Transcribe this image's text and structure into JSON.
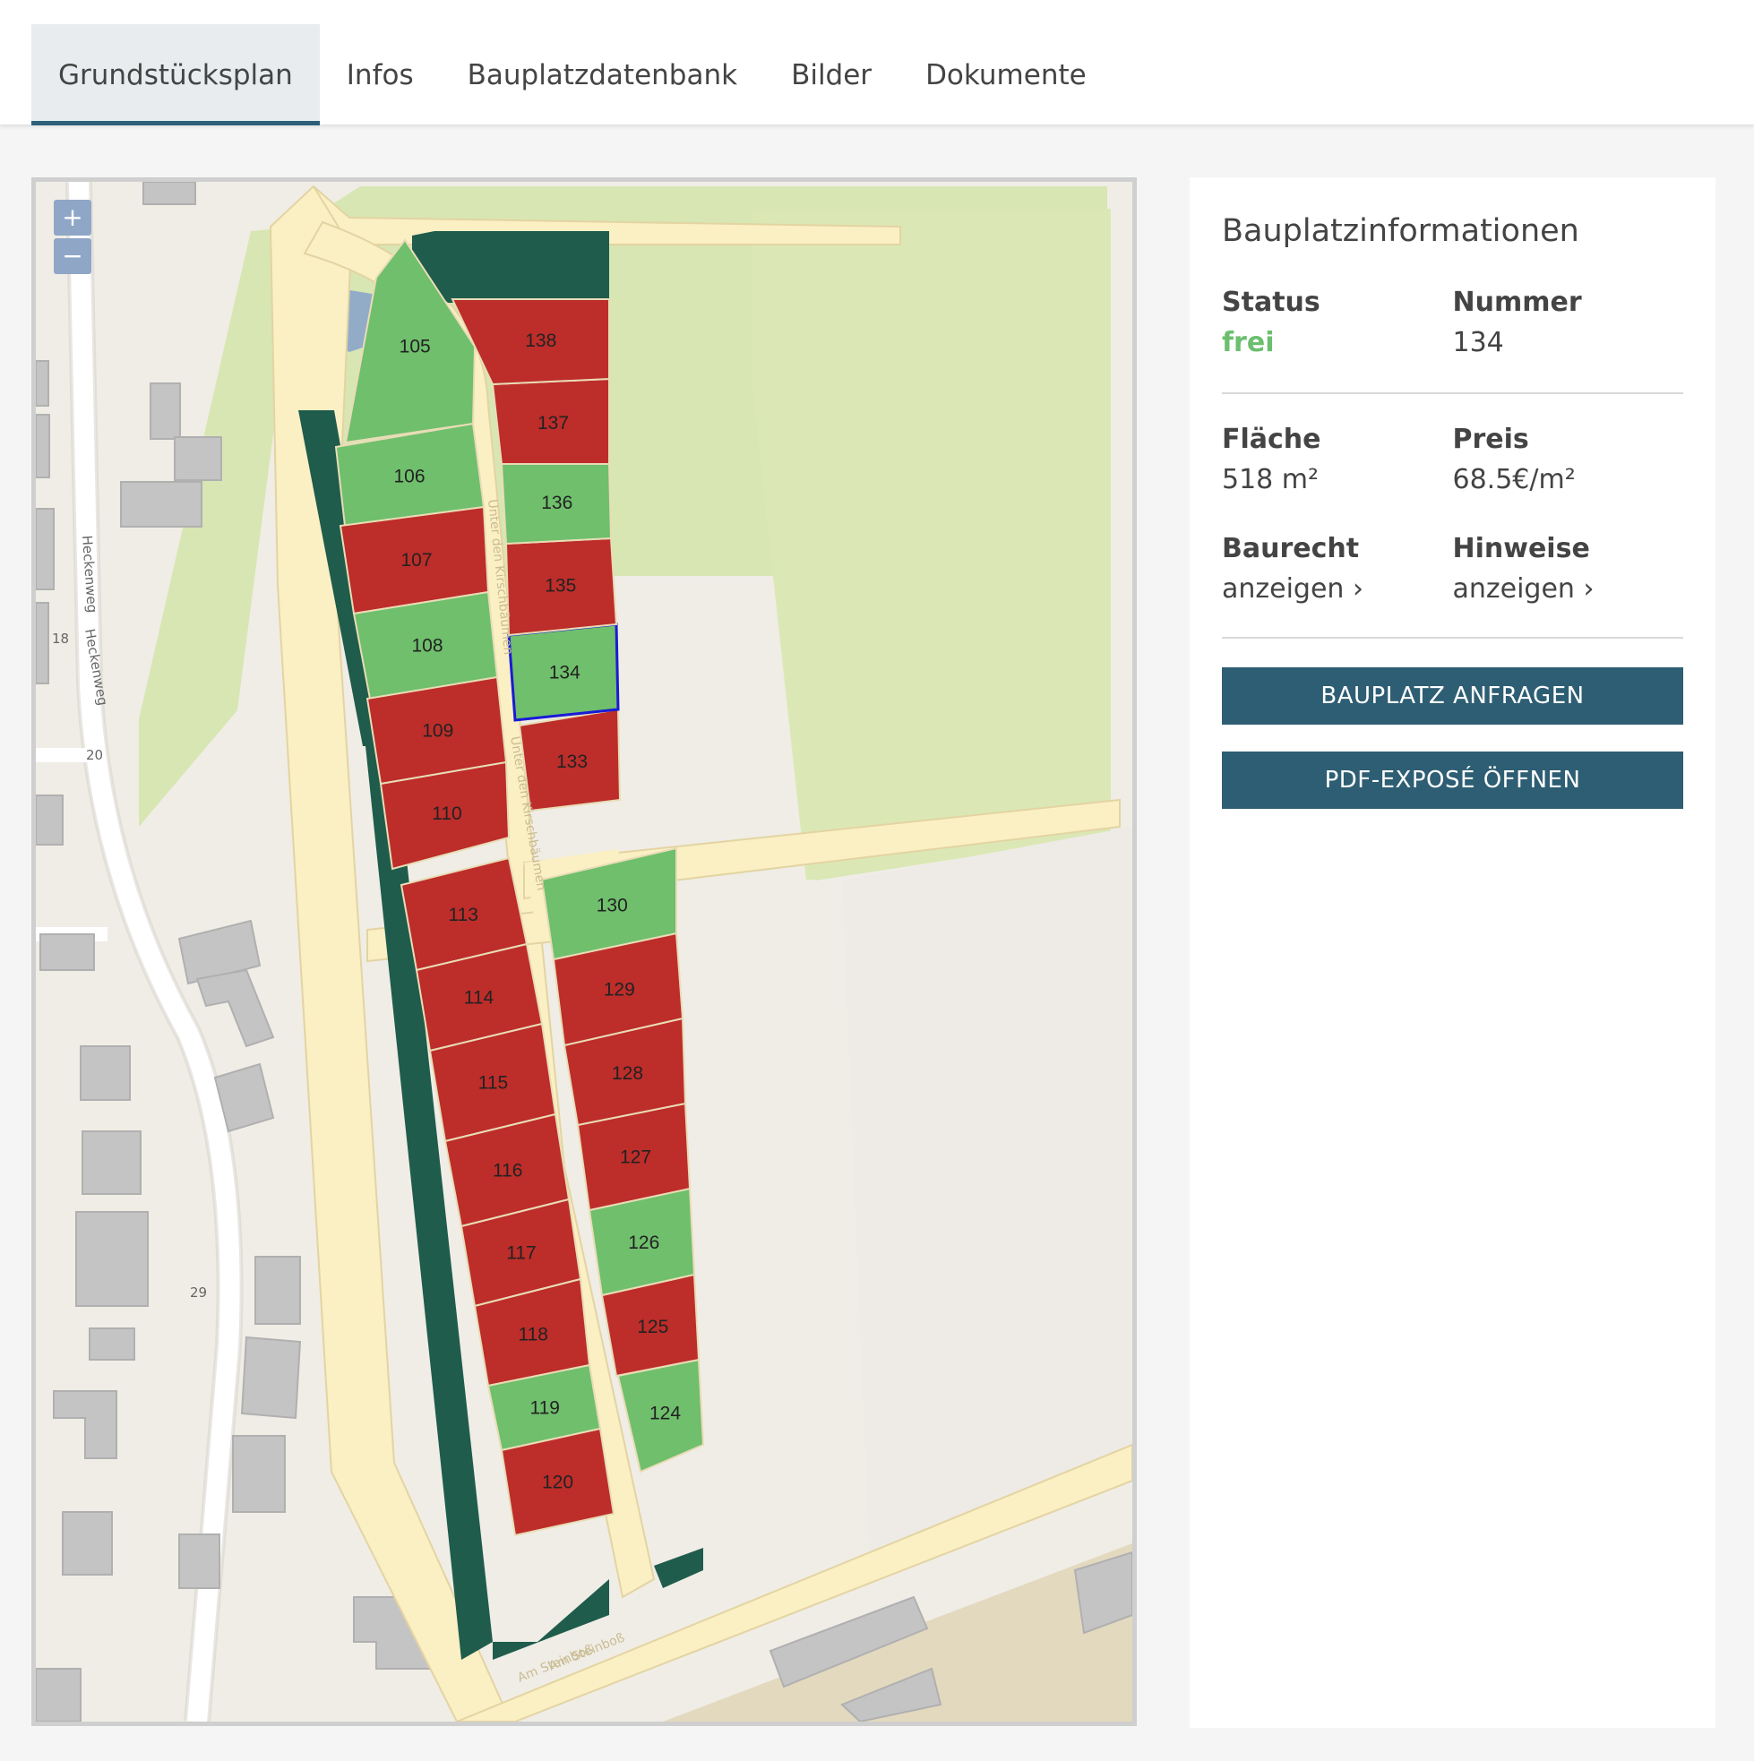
{
  "tabs": [
    {
      "label": "Grundstücksplan",
      "active": true
    },
    {
      "label": "Infos"
    },
    {
      "label": "Bauplatzdatenbank"
    },
    {
      "label": "Bilder"
    },
    {
      "label": "Dokumente"
    }
  ],
  "map": {
    "zoom_in": "+",
    "zoom_out": "−",
    "street_labels": [
      "Heckenweg",
      "Heckenweg",
      "Unter den Kirschbäumen",
      "Unter den Kirschbäumen",
      "Am Steinboß",
      "Am Steinboß"
    ],
    "house_numbers": [
      "18",
      "20",
      "29"
    ],
    "lot_status_colors": {
      "frei": "#6fbf6c",
      "vergeben": "#bd2d2a"
    },
    "selected_lot": "134",
    "lots": [
      {
        "number": "105",
        "status": "frei"
      },
      {
        "number": "106",
        "status": "frei"
      },
      {
        "number": "107",
        "status": "vergeben"
      },
      {
        "number": "108",
        "status": "frei"
      },
      {
        "number": "109",
        "status": "vergeben"
      },
      {
        "number": "110",
        "status": "vergeben"
      },
      {
        "number": "113",
        "status": "vergeben"
      },
      {
        "number": "114",
        "status": "vergeben"
      },
      {
        "number": "115",
        "status": "vergeben"
      },
      {
        "number": "116",
        "status": "vergeben"
      },
      {
        "number": "117",
        "status": "vergeben"
      },
      {
        "number": "118",
        "status": "vergeben"
      },
      {
        "number": "119",
        "status": "frei"
      },
      {
        "number": "120",
        "status": "vergeben"
      },
      {
        "number": "124",
        "status": "frei"
      },
      {
        "number": "125",
        "status": "vergeben"
      },
      {
        "number": "126",
        "status": "frei"
      },
      {
        "number": "127",
        "status": "vergeben"
      },
      {
        "number": "128",
        "status": "vergeben"
      },
      {
        "number": "129",
        "status": "vergeben"
      },
      {
        "number": "130",
        "status": "frei"
      },
      {
        "number": "133",
        "status": "vergeben"
      },
      {
        "number": "134",
        "status": "frei"
      },
      {
        "number": "135",
        "status": "vergeben"
      },
      {
        "number": "136",
        "status": "frei"
      },
      {
        "number": "137",
        "status": "vergeben"
      },
      {
        "number": "138",
        "status": "vergeben"
      }
    ]
  },
  "panel": {
    "title": "Bauplatzinformationen",
    "status_label": "Status",
    "status_value": "frei",
    "nummer_label": "Nummer",
    "nummer_value": "134",
    "flaeche_label": "Fläche",
    "flaeche_value": "518 m²",
    "preis_label": "Preis",
    "preis_value": "68.5€/m²",
    "baurecht_label": "Baurecht",
    "baurecht_link": "anzeigen ›",
    "hinweise_label": "Hinweise",
    "hinweise_link": "anzeigen ›",
    "btn_anfragen": "BAUPLATZ ANFRAGEN",
    "btn_pdf": "PDF-EXPOSÉ ÖFFNEN"
  }
}
